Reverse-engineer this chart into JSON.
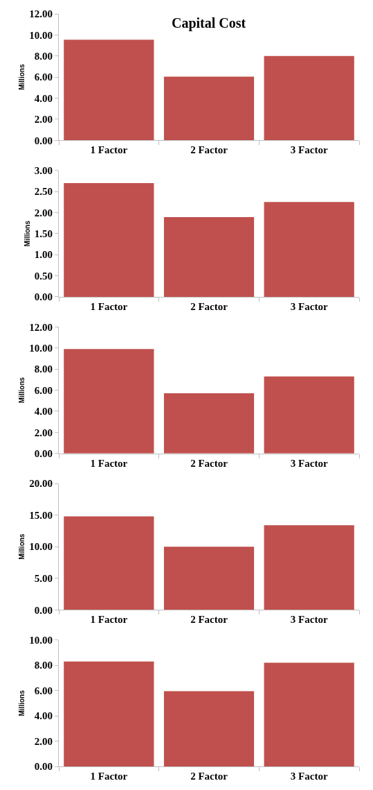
{
  "chart_data": [
    {
      "type": "bar",
      "title": "Capital Cost",
      "ylabel": "Millions",
      "categories": [
        "1 Factor",
        "2 Factor",
        "3 Factor"
      ],
      "values": [
        9.55,
        6.05,
        8.0
      ],
      "color": "#c0504d",
      "ylim": [
        0,
        12
      ],
      "yticks": [
        {
          "value": 0,
          "label": "0.00"
        },
        {
          "value": 2,
          "label": "2.00"
        },
        {
          "value": 4,
          "label": "4.00"
        },
        {
          "value": 6,
          "label": "6.00"
        },
        {
          "value": 8,
          "label": "8.00"
        },
        {
          "value": 10,
          "label": "10.00"
        },
        {
          "value": 12,
          "label": "12.00"
        }
      ]
    },
    {
      "type": "bar",
      "ylabel": "Millions",
      "categories": [
        "1 Factor",
        "2 Factor",
        "3 Factor"
      ],
      "values": [
        2.7,
        1.89,
        2.25
      ],
      "color": "#c0504d",
      "ylim": [
        0,
        3
      ],
      "yticks": [
        {
          "value": 0,
          "label": "0.00"
        },
        {
          "value": 0.5,
          "label": "0.50"
        },
        {
          "value": 1,
          "label": "1.00"
        },
        {
          "value": 1.5,
          "label": "1.50"
        },
        {
          "value": 2,
          "label": "2.00"
        },
        {
          "value": 2.5,
          "label": "2.50"
        },
        {
          "value": 3,
          "label": "3.00"
        }
      ]
    },
    {
      "type": "bar",
      "ylabel": "Millions",
      "categories": [
        "1 Factor",
        "2 Factor",
        "3 Factor"
      ],
      "values": [
        9.9,
        5.7,
        7.3
      ],
      "color": "#c0504d",
      "ylim": [
        0,
        12
      ],
      "yticks": [
        {
          "value": 0,
          "label": "0.00"
        },
        {
          "value": 2,
          "label": "2.00"
        },
        {
          "value": 4,
          "label": "4.00"
        },
        {
          "value": 6,
          "label": "6.00"
        },
        {
          "value": 8,
          "label": "8.00"
        },
        {
          "value": 10,
          "label": "10.00"
        },
        {
          "value": 12,
          "label": "12.00"
        }
      ]
    },
    {
      "type": "bar",
      "ylabel": "Millions",
      "categories": [
        "1 Factor",
        "2 Factor",
        "3 Factor"
      ],
      "values": [
        14.8,
        10.0,
        13.4
      ],
      "color": "#c0504d",
      "ylim": [
        0,
        20
      ],
      "yticks": [
        {
          "value": 0,
          "label": "0.00"
        },
        {
          "value": 5,
          "label": "5.00"
        },
        {
          "value": 10,
          "label": "10.00"
        },
        {
          "value": 15,
          "label": "15.00"
        },
        {
          "value": 20,
          "label": "20.00"
        }
      ]
    },
    {
      "type": "bar",
      "ylabel": "Millions",
      "categories": [
        "1 Factor",
        "2 Factor",
        "3 Factor"
      ],
      "values": [
        8.3,
        5.95,
        8.2
      ],
      "color": "#c0504d",
      "ylim": [
        0,
        10
      ],
      "yticks": [
        {
          "value": 0,
          "label": "0.00"
        },
        {
          "value": 2,
          "label": "2.00"
        },
        {
          "value": 4,
          "label": "4.00"
        },
        {
          "value": 6,
          "label": "6.00"
        },
        {
          "value": 8,
          "label": "8.00"
        },
        {
          "value": 10,
          "label": "10.00"
        }
      ]
    }
  ]
}
